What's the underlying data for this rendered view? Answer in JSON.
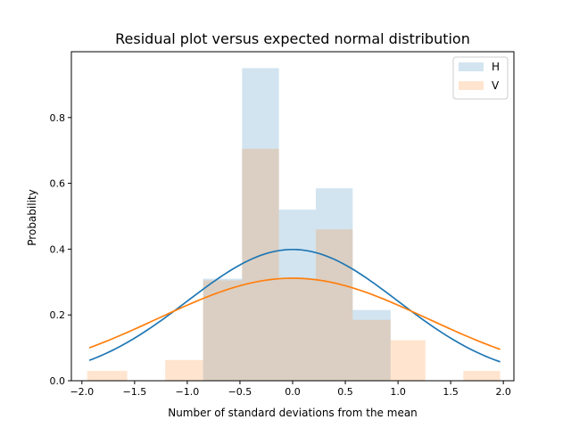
{
  "chart_data": {
    "type": "bar",
    "title": "Residual plot versus expected normal distribution",
    "xlabel": "Number of standard deviations from the mean",
    "ylabel": "Probability",
    "xlim": [
      -2.1,
      2.1
    ],
    "ylim": [
      0,
      1.0
    ],
    "xticks": [
      -2.0,
      -1.5,
      -1.0,
      -0.5,
      0.0,
      0.5,
      1.0,
      1.5,
      2.0
    ],
    "xtick_labels": [
      "−2.0",
      "−1.5",
      "−1.0",
      "−0.5",
      "0.0",
      "0.5",
      "1.0",
      "1.5",
      "2.0"
    ],
    "yticks": [
      0.0,
      0.2,
      0.4,
      0.6,
      0.8
    ],
    "ytick_labels": [
      "0.0",
      "0.2",
      "0.4",
      "0.6",
      "0.8"
    ],
    "legend_position": "top-right",
    "bins": [
      [
        -1.95,
        -1.57
      ],
      [
        -1.57,
        -1.21
      ],
      [
        -1.21,
        -0.85
      ],
      [
        -0.85,
        -0.48
      ],
      [
        -0.48,
        -0.13
      ],
      [
        -0.13,
        0.22
      ],
      [
        0.22,
        0.57
      ],
      [
        0.57,
        0.93
      ],
      [
        0.93,
        1.26
      ],
      [
        1.26,
        1.62
      ],
      [
        1.62,
        1.97
      ]
    ],
    "histograms": [
      {
        "name": "H",
        "color": "#1f77b4",
        "opacity": 0.2,
        "values": [
          0.0,
          0.0,
          0.0,
          0.31,
          0.95,
          0.52,
          0.585,
          0.215,
          0.0,
          0.0,
          0.0
        ]
      },
      {
        "name": "V",
        "color": "#ff7f0e",
        "opacity": 0.2,
        "values": [
          0.03,
          0.0,
          0.063,
          0.305,
          0.705,
          0.31,
          0.46,
          0.185,
          0.123,
          0.0,
          0.03
        ]
      }
    ],
    "series": [
      {
        "name": "H",
        "color": "#1f77b4",
        "type": "line",
        "mu": 0.0,
        "sigma": 1.0,
        "x_range": [
          -1.93,
          1.97
        ]
      },
      {
        "name": "V",
        "color": "#ff7f0e",
        "type": "line",
        "mu": 0.0,
        "sigma": 1.28,
        "x_range": [
          -1.93,
          1.97
        ]
      }
    ],
    "legend": [
      {
        "label": "H",
        "color": "#1f77b4"
      },
      {
        "label": "V",
        "color": "#ff7f0e"
      }
    ]
  }
}
